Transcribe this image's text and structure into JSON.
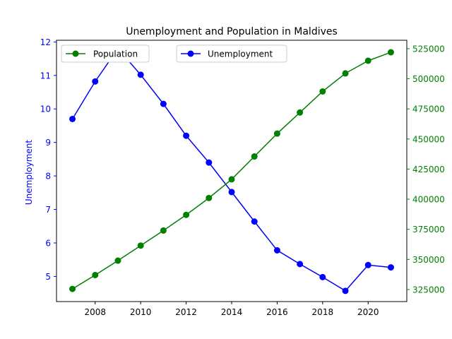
{
  "chart_data": {
    "type": "line",
    "title": "Unemployment and Population in Maldives",
    "xlabel": "",
    "ylabel": "Unemployment",
    "y2label": "",
    "x": [
      2007,
      2008,
      2009,
      2010,
      2011,
      2012,
      2013,
      2014,
      2015,
      2016,
      2017,
      2018,
      2019,
      2020,
      2021
    ],
    "xlim": [
      2006.3,
      2021.7
    ],
    "xticks": [
      "2008",
      "2010",
      "2012",
      "2014",
      "2016",
      "2018",
      "2020"
    ],
    "ylim": [
      4.25,
      12.05
    ],
    "yticks": [
      "5",
      "6",
      "7",
      "8",
      "9",
      "10",
      "11",
      "12"
    ],
    "y2lim": [
      315000,
      532000
    ],
    "y2ticks": [
      "325000",
      "350000",
      "375000",
      "400000",
      "425000",
      "450000",
      "475000",
      "500000",
      "525000"
    ],
    "grid": false,
    "series": [
      {
        "name": "Unemployment",
        "axis": "left",
        "color": "#0000ff",
        "values": [
          9.7,
          10.82,
          11.8,
          11.02,
          10.15,
          9.2,
          8.4,
          7.52,
          6.64,
          5.78,
          5.37,
          4.98,
          4.57,
          5.34,
          5.27
        ]
      },
      {
        "name": "Population",
        "axis": "right",
        "color": "#008000",
        "values": [
          325500,
          337000,
          349000,
          361500,
          374000,
          387000,
          401000,
          416500,
          435500,
          454500,
          472000,
          489500,
          504500,
          515000,
          522000
        ]
      }
    ],
    "legends": [
      {
        "position": "top-left",
        "series": "Population"
      },
      {
        "position": "upper-center",
        "series": "Unemployment"
      }
    ]
  }
}
